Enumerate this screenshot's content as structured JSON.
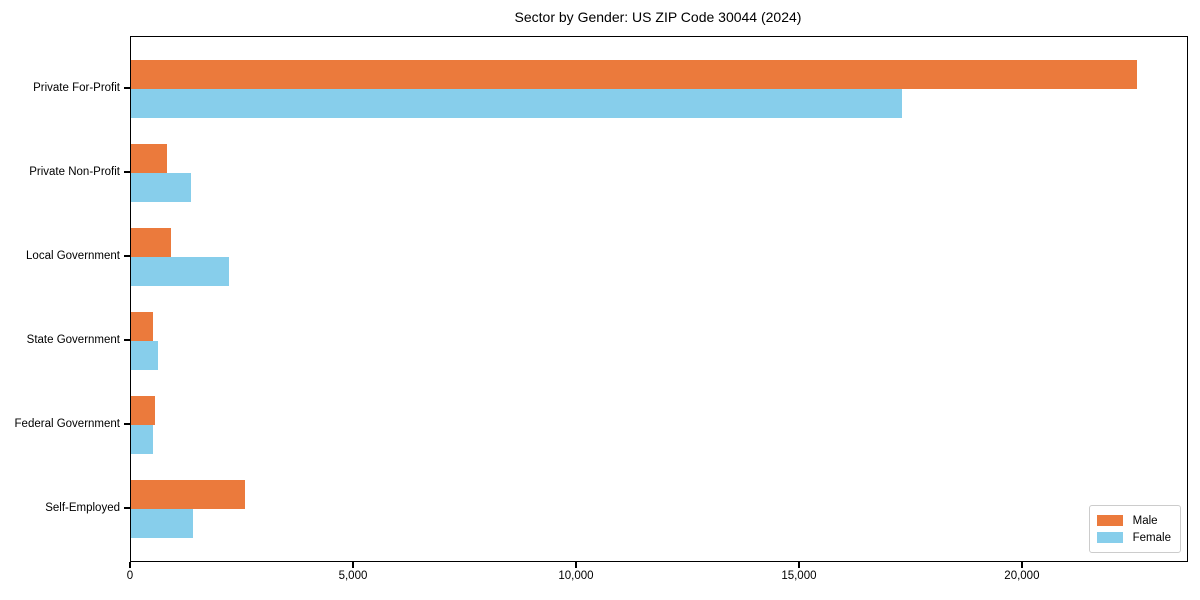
{
  "title": "Sector by Gender: US ZIP Code 30044 (2024)",
  "colors": {
    "male": "#EB7A3C",
    "female": "#87CEEB",
    "axis": "#000000",
    "legend_border": "#cccccc",
    "background": "#ffffff"
  },
  "chart_data": {
    "type": "bar",
    "orientation": "horizontal",
    "title": "Sector by Gender: US ZIP Code 30044 (2024)",
    "xlabel": "",
    "ylabel": "",
    "categories": [
      "Private For-Profit",
      "Private Non-Profit",
      "Local Government",
      "State Government",
      "Federal Government",
      "Self-Employed"
    ],
    "series": [
      {
        "name": "Male",
        "color": "#EB7A3C",
        "values": [
          22550,
          810,
          890,
          500,
          530,
          2560
        ]
      },
      {
        "name": "Female",
        "color": "#87CEEB",
        "values": [
          17280,
          1340,
          2190,
          600,
          490,
          1380
        ]
      }
    ],
    "xlim": [
      0,
      23680
    ],
    "xticks": [
      0,
      5000,
      10000,
      15000,
      20000
    ],
    "xtick_labels": [
      "0",
      "5,000",
      "10,000",
      "15,000",
      "20,000"
    ],
    "grid": false,
    "legend": {
      "position": "lower right",
      "entries": [
        "Male",
        "Female"
      ]
    }
  }
}
